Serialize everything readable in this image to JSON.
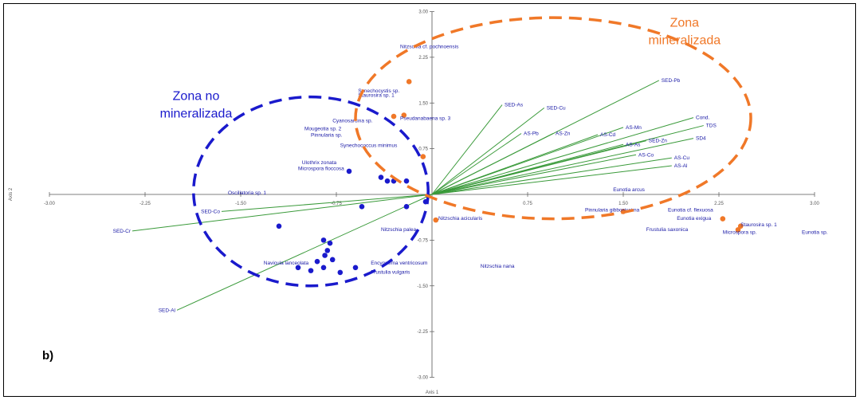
{
  "chart_data": {
    "type": "scatter",
    "panel_label": "b)",
    "xlabel": "Axis 1",
    "ylabel": "Axis 2",
    "xlim": [
      -3.0,
      3.0
    ],
    "ylim": [
      -3.0,
      3.0
    ],
    "x_ticks": [
      "-3.00",
      "-2.25",
      "-1.50",
      "-0.75",
      "0.75",
      "1.50",
      "2.25",
      "3.00"
    ],
    "x_tick_values": [
      -3.0,
      -2.25,
      -1.5,
      -0.75,
      0.75,
      1.5,
      2.25,
      3.0
    ],
    "y_ticks": [
      "3.00",
      "2.25",
      "1.50",
      "0.75",
      "-0.75",
      "-1.50",
      "-2.25",
      "-3.00"
    ],
    "y_tick_values": [
      3.0,
      2.25,
      1.5,
      0.75,
      -0.75,
      -1.5,
      -2.25,
      -3.0
    ],
    "colors": {
      "blue": "#1a1acc",
      "orange": "#f07828",
      "vector": "#3a9a3a"
    },
    "zones": [
      {
        "label_lines": [
          "Zona no",
          "mineralizada"
        ],
        "color": "#1a1acc",
        "cx": -0.95,
        "cy": 0.05,
        "rx": 0.92,
        "ry": 1.55,
        "label_x": -1.85,
        "label_y": 1.55
      },
      {
        "label_lines": [
          "Zona",
          "mineralizada"
        ],
        "color": "#f07828",
        "cx": 0.95,
        "cy": 1.25,
        "rx": 1.55,
        "ry": 1.65,
        "label_x": 1.98,
        "label_y": 2.75
      }
    ],
    "vectors": [
      {
        "label": "SED-Pb",
        "x": 1.78,
        "y": 1.87
      },
      {
        "label": "SED-As",
        "x": 0.55,
        "y": 1.47
      },
      {
        "label": "SED-Cu",
        "x": 0.88,
        "y": 1.42
      },
      {
        "label": "Cond.",
        "x": 2.05,
        "y": 1.26
      },
      {
        "label": "TDS",
        "x": 2.13,
        "y": 1.13
      },
      {
        "label": "SD4",
        "x": 2.05,
        "y": 0.92
      },
      {
        "label": "AS-Mn",
        "x": 1.5,
        "y": 1.1
      },
      {
        "label": "AS-Pb",
        "x": 0.7,
        "y": 1.0
      },
      {
        "label": "AS-Zn",
        "x": 0.95,
        "y": 1.0
      },
      {
        "label": "AS-Cd",
        "x": 1.3,
        "y": 0.98
      },
      {
        "label": "SED-Zn",
        "x": 1.68,
        "y": 0.88
      },
      {
        "label": "AS-As",
        "x": 1.5,
        "y": 0.82
      },
      {
        "label": "AS-Co",
        "x": 1.6,
        "y": 0.65
      },
      {
        "label": "AS-Cu",
        "x": 1.88,
        "y": 0.6
      },
      {
        "label": "AS-Al",
        "x": 1.88,
        "y": 0.47
      },
      {
        "label": "SED-Co",
        "x": -1.65,
        "y": -0.28
      },
      {
        "label": "SED-Cr",
        "x": -2.35,
        "y": -0.6
      },
      {
        "label": "SED-Al",
        "x": -2.0,
        "y": -1.9
      }
    ],
    "blue_points": [
      {
        "x": -0.65,
        "y": 0.38
      },
      {
        "x": -0.4,
        "y": 0.28
      },
      {
        "x": -0.35,
        "y": 0.22
      },
      {
        "x": -0.2,
        "y": 0.22
      },
      {
        "x": -0.3,
        "y": 0.22
      },
      {
        "x": -0.05,
        "y": -0.12
      },
      {
        "x": -0.2,
        "y": -0.2
      },
      {
        "x": -1.2,
        "y": -0.52
      },
      {
        "x": -0.85,
        "y": -0.75
      },
      {
        "x": -0.8,
        "y": -0.8
      },
      {
        "x": -0.82,
        "y": -0.92
      },
      {
        "x": -0.84,
        "y": -1.0
      },
      {
        "x": -0.78,
        "y": -1.07
      },
      {
        "x": -0.9,
        "y": -1.1
      },
      {
        "x": -1.05,
        "y": -1.2
      },
      {
        "x": -0.95,
        "y": -1.25
      },
      {
        "x": -0.85,
        "y": -1.2
      },
      {
        "x": -0.72,
        "y": -1.28
      },
      {
        "x": -0.6,
        "y": -1.2
      },
      {
        "x": -0.55,
        "y": -0.2
      }
    ],
    "orange_points": [
      {
        "x": -0.18,
        "y": 1.85
      },
      {
        "x": -0.22,
        "y": 1.3
      },
      {
        "x": -0.3,
        "y": 1.28
      },
      {
        "x": -0.07,
        "y": 0.62
      },
      {
        "x": 0.03,
        "y": -0.42
      },
      {
        "x": 1.5,
        "y": -0.28
      },
      {
        "x": 2.28,
        "y": -0.4
      },
      {
        "x": 2.42,
        "y": -0.52
      },
      {
        "x": 2.4,
        "y": -0.58
      }
    ],
    "species_labels": [
      {
        "text": "Nitzschia cf. pochnoensis",
        "x": -0.25,
        "y": 2.4
      },
      {
        "text": "Synechocystis sp.",
        "x": -0.58,
        "y": 1.67
      },
      {
        "text": "Staurosira sp. 1",
        "x": -0.58,
        "y": 1.6
      },
      {
        "text": "Pseudanabaena sp. 3",
        "x": -0.25,
        "y": 1.22
      },
      {
        "text": "Cyanosarcina sp.",
        "x": -0.78,
        "y": 1.18
      },
      {
        "text": "Mougeotia sp. 2",
        "x": -1.0,
        "y": 1.05
      },
      {
        "text": "Pinnularia sp.",
        "x": -0.95,
        "y": 0.95
      },
      {
        "text": "Synechococcus minimus",
        "x": -0.72,
        "y": 0.78
      },
      {
        "text": "Ulothrix zonata",
        "x": -1.02,
        "y": 0.5
      },
      {
        "text": "Microspora floccosa",
        "x": -1.05,
        "y": 0.4
      },
      {
        "text": "Oscillatoria sp. 1",
        "x": -1.6,
        "y": 0.0
      },
      {
        "text": "Nitzschia palea",
        "x": -0.4,
        "y": -0.6
      },
      {
        "text": "Navicula lanceolata",
        "x": -1.32,
        "y": -1.15
      },
      {
        "text": "Encyonema ventricosum",
        "x": -0.48,
        "y": -1.15
      },
      {
        "text": "Frustulia vulgaris",
        "x": -0.48,
        "y": -1.3
      },
      {
        "text": "Nitzschia acicularis",
        "x": 0.05,
        "y": -0.42
      },
      {
        "text": "Nitzschia nana",
        "x": 0.38,
        "y": -1.2
      },
      {
        "text": "Eunotia arcus",
        "x": 1.42,
        "y": 0.05
      },
      {
        "text": "Pinnularia gibbosissima",
        "x": 1.2,
        "y": -0.28
      },
      {
        "text": "Eunotia cf. flexuosa",
        "x": 1.85,
        "y": -0.28
      },
      {
        "text": "Eunotia exigua",
        "x": 1.92,
        "y": -0.42
      },
      {
        "text": "Frustulia saxonica",
        "x": 1.68,
        "y": -0.6
      },
      {
        "text": "Staurosira sp. 1",
        "x": 2.42,
        "y": -0.52
      },
      {
        "text": "Microspora sp.",
        "x": 2.28,
        "y": -0.65
      },
      {
        "text": "Eunotia sp.",
        "x": 2.9,
        "y": -0.65
      }
    ]
  }
}
